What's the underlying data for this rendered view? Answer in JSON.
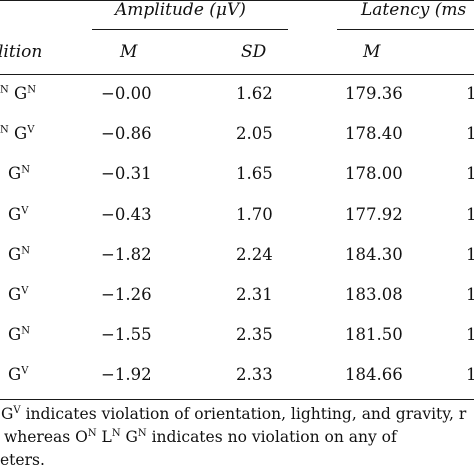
{
  "table": {
    "group_headers": {
      "amplitude": "Amplitude (μV)",
      "latency": "Latency (ms"
    },
    "condition_header": "lition",
    "sub_headers": {
      "amp_m": "M",
      "amp_sd": "SD",
      "lat_m": "M"
    },
    "rows": [
      {
        "pre": "",
        "pre_sup": "N",
        "g_sup": "N",
        "amp_m": "−0.00",
        "amp_sd": "1.62",
        "lat_m": "179.36",
        "trail": "1"
      },
      {
        "pre": "",
        "pre_sup": "N",
        "g_sup": "V",
        "amp_m": "−0.86",
        "amp_sd": "2.05",
        "lat_m": "178.40",
        "trail": "1"
      },
      {
        "pre": "",
        "pre_sup": "",
        "g_sup": "N",
        "amp_m": "−0.31",
        "amp_sd": "1.65",
        "lat_m": "178.00",
        "trail": "1"
      },
      {
        "pre": "",
        "pre_sup": "",
        "g_sup": "V",
        "amp_m": "−0.43",
        "amp_sd": "1.70",
        "lat_m": "177.92",
        "trail": "1"
      },
      {
        "pre": "",
        "pre_sup": "",
        "g_sup": "N",
        "amp_m": "−1.82",
        "amp_sd": "2.24",
        "lat_m": "184.30",
        "trail": "1"
      },
      {
        "pre": "",
        "pre_sup": "",
        "g_sup": "V",
        "amp_m": "−1.26",
        "amp_sd": "2.31",
        "lat_m": "183.08",
        "trail": "1"
      },
      {
        "pre": "",
        "pre_sup": "",
        "g_sup": "N",
        "amp_m": "−1.55",
        "amp_sd": "2.35",
        "lat_m": "181.50",
        "trail": "1"
      },
      {
        "pre": "",
        "pre_sup": "",
        "g_sup": "V",
        "amp_m": "−1.92",
        "amp_sd": "2.33",
        "lat_m": "184.66",
        "trail": "1"
      }
    ]
  },
  "footnote": {
    "line1_sup": "V",
    "line1_text": "indicates violation of orientation, lighting, and gravity, r",
    "line2_a": "whereas O",
    "line2_sup1": "N",
    "line2_b": " L",
    "line2_sup2": "N",
    "line2_c": " G",
    "line2_sup3": "N",
    "line2_d": " indicates no violation on any of",
    "line3": "eters."
  }
}
